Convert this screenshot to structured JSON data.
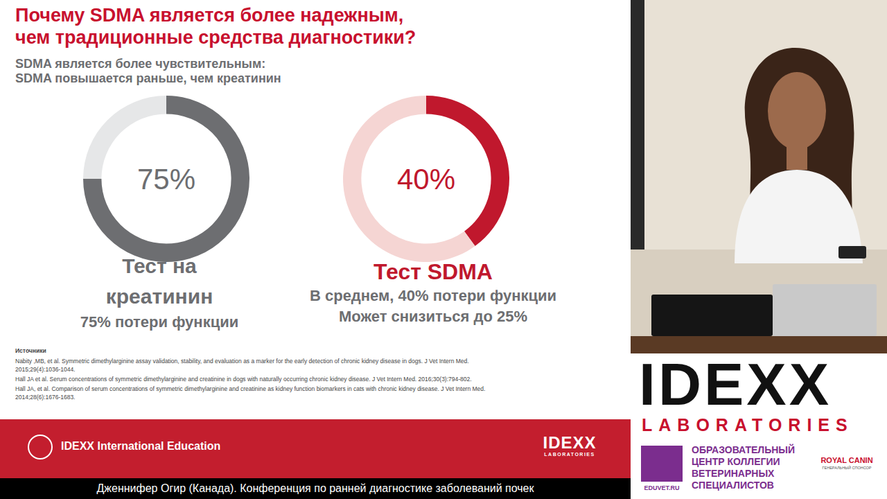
{
  "slide": {
    "title": [
      "Почему SDMA является более надежным,",
      "чем традиционные средства диагностики?"
    ],
    "subtitle": [
      "SDMA является более чувствительным:",
      "SDMA повышается раньше, чем креатинин"
    ],
    "sources": {
      "heading": "Источники",
      "items": [
        "Nabity ,MB, et al. Symmetric dimethylarginine assay validation, stability, and evaluation as a marker for the early detection of chronic kidney disease in dogs. J Vet Intern Med. 2015;29(4):1036-1044.",
        "Hall JA et al. Serum concentrations of symmetric dimethylarginine and creatinine in dogs with naturally occurring chronic kidney disease. J Vet Intern Med. 2016;30(3):794-802.",
        "Hall JA, et al. Comparison of serum concentrations of symmetric dimethylarginine and creatinine as kidney function biomarkers in cats with chronic kidney disease. J Vet Intern Med. 2014;28(6):1676-1683."
      ]
    },
    "footer": {
      "program": "IDEXX International Education",
      "logo": [
        "IDEXX",
        "LABORATORIES"
      ]
    }
  },
  "chart_data": [
    {
      "type": "donut",
      "title": "Тест на креатинин",
      "subtitle": [
        "75% потери функции"
      ],
      "annotation": "75%",
      "values": [
        75,
        25
      ],
      "colors": [
        "#6d6e71",
        "#e6e7e8"
      ]
    },
    {
      "type": "donut",
      "title": "Тест SDMA",
      "subtitle": [
        "В среднем, 40% потери функции",
        "Может снизиться до 25%"
      ],
      "annotation": "40%",
      "values": [
        40,
        60
      ],
      "colors": [
        "#c0182d",
        "#f5d5d3"
      ]
    }
  ],
  "sidebar": {
    "logo": [
      "IDEXX",
      "LABORATORIES"
    ],
    "eduvet": {
      "site": "EDUVET.RU",
      "name": [
        "ОБРАЗОВАТЕЛЬНЫЙ",
        "ЦЕНТР КОЛЛЕГИИ",
        "ВЕТЕРИНАРНЫХ",
        "СПЕЦИАЛИСТОВ"
      ]
    },
    "sponsor": {
      "name": "ROYAL CANIN",
      "role": "ГЕНЕРАЛЬНЫЙ СПОНСОР"
    }
  },
  "caption": "Дженнифер Огир (Канада). Конференция по ранней диагностике заболеваний почек"
}
